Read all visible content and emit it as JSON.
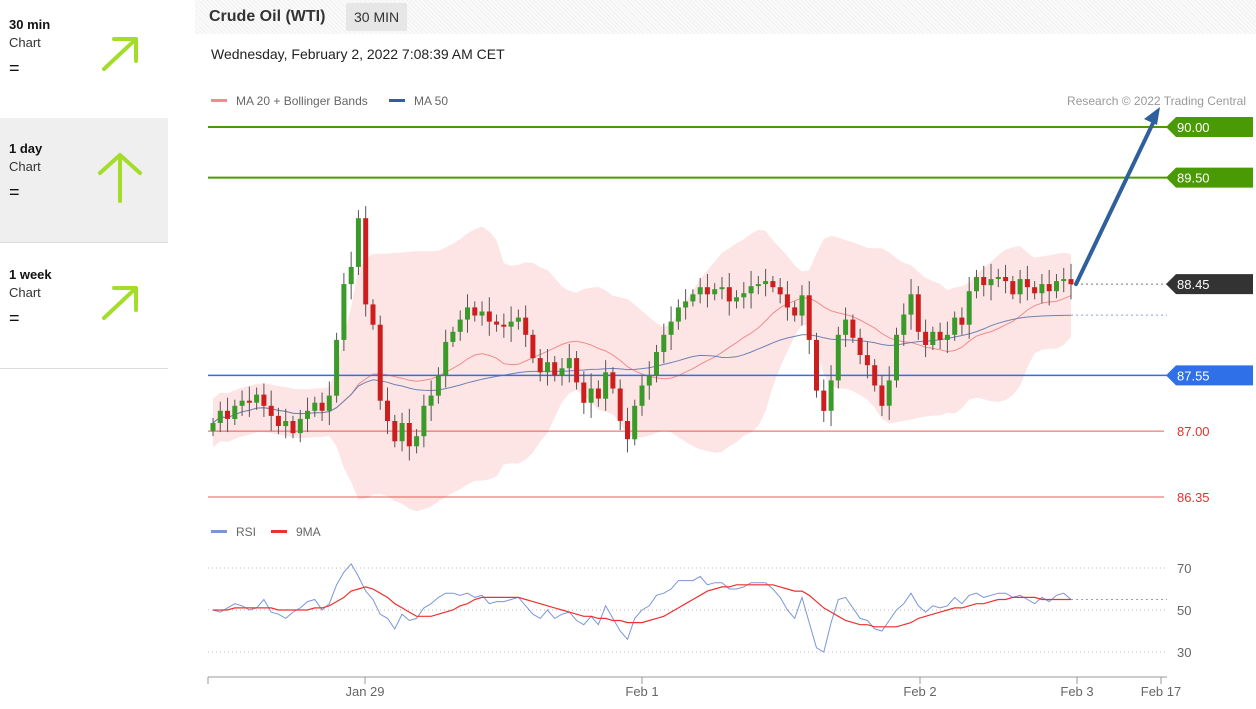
{
  "sidebar": {
    "items": [
      {
        "label": "30 min",
        "sub": "Chart",
        "status": "=",
        "arrow": "up-right-arrow-icon"
      },
      {
        "label": "1 day",
        "sub": "Chart",
        "status": "=",
        "arrow": "up-arrow-icon"
      },
      {
        "label": "1 week",
        "sub": "Chart",
        "status": "=",
        "arrow": "up-right-arrow-icon"
      }
    ],
    "arrow_color": "#a3dd2a"
  },
  "header": {
    "title": "Crude Oil (WTI)",
    "timeframe": "30 MIN",
    "datetime": "Wednesday, February 2, 2022 7:08:39 AM CET"
  },
  "legend": {
    "ma20": "MA 20 + Bollinger Bands",
    "ma50": "MA 50",
    "rsi": "RSI",
    "rsi9": "9MA",
    "credit": "Research © 2022 Trading Central"
  },
  "chart_data": [
    {
      "type": "candlestick",
      "title": "Crude Oil (WTI)",
      "timeframe": "30 MIN",
      "ylim": [
        86.35,
        90.0
      ],
      "x_ticks": [
        "Jan 29",
        "Feb 1",
        "Feb 2",
        "Feb 3",
        "Feb 17"
      ],
      "last_price": 88.45,
      "levels": [
        {
          "value": 90.0,
          "label": "90.00",
          "kind": "target",
          "color": "#4a9a05"
        },
        {
          "value": 89.5,
          "label": "89.50",
          "kind": "target",
          "color": "#4a9a05"
        },
        {
          "value": 88.45,
          "label": "88.45",
          "kind": "last",
          "color": "#333333"
        },
        {
          "value": 87.55,
          "label": "87.55",
          "kind": "pivot",
          "color": "#2f6fe8"
        },
        {
          "value": 87.0,
          "label": "87.00",
          "kind": "support",
          "color": "#e83030"
        },
        {
          "value": 86.35,
          "label": "86.35",
          "kind": "support",
          "color": "#e83030"
        }
      ],
      "forecast_arrow": {
        "from": 88.45,
        "to": 90.0,
        "color": "#2f5f9c"
      },
      "colors": {
        "up": "#3a9a2a",
        "down": "#cc1e1e",
        "band": "#fde1e1",
        "ma20": "#f08c8c",
        "ma50": "#6e80b4"
      },
      "close": [
        87.08,
        87.2,
        87.12,
        87.25,
        87.3,
        87.28,
        87.36,
        87.25,
        87.15,
        87.05,
        87.1,
        86.98,
        87.12,
        87.2,
        87.28,
        87.2,
        87.35,
        87.9,
        88.45,
        88.62,
        89.1,
        88.25,
        88.05,
        87.3,
        87.1,
        86.9,
        87.08,
        86.85,
        86.95,
        87.25,
        87.35,
        87.55,
        87.88,
        87.98,
        88.1,
        88.22,
        88.14,
        88.18,
        88.08,
        88.05,
        88.03,
        88.08,
        88.12,
        87.95,
        87.72,
        87.58,
        87.68,
        87.55,
        87.62,
        87.72,
        87.48,
        87.28,
        87.42,
        87.32,
        87.58,
        87.42,
        87.1,
        86.92,
        87.25,
        87.45,
        87.55,
        87.78,
        87.95,
        88.08,
        88.22,
        88.28,
        88.35,
        88.42,
        88.35,
        88.4,
        88.42,
        88.28,
        88.32,
        88.36,
        88.43,
        88.45,
        88.48,
        88.42,
        88.35,
        88.22,
        88.14,
        88.34,
        87.9,
        87.4,
        87.2,
        87.5,
        87.95,
        88.1,
        87.92,
        87.75,
        87.65,
        87.45,
        87.25,
        87.5,
        87.95,
        88.15,
        88.35,
        87.98,
        87.85,
        87.98,
        87.9,
        87.95,
        88.12,
        88.05,
        88.38,
        88.52,
        88.44,
        88.5,
        88.52,
        88.48,
        88.35,
        88.5,
        88.42,
        88.36,
        88.45,
        88.38,
        88.48,
        88.5,
        88.45
      ],
      "rsi": {
        "ylim": [
          25,
          75
        ],
        "gridlines": [
          70,
          50,
          30
        ],
        "series": [
          {
            "name": "RSI",
            "color": "#7a95d8",
            "values": [
              50,
              49,
              51,
              53,
              52,
              50,
              51,
              55,
              49,
              48,
              46,
              49,
              51,
              54,
              55,
              50,
              53,
              62,
              68,
              72,
              66,
              59,
              55,
              48,
              46,
              41,
              48,
              45,
              46,
              51,
              53,
              56,
              58,
              58,
              57,
              58,
              56,
              57,
              53,
              54,
              54,
              55,
              56,
              52,
              48,
              46,
              50,
              46,
              48,
              49,
              45,
              43,
              47,
              43,
              52,
              46,
              40,
              36,
              46,
              50,
              52,
              57,
              58,
              60,
              64,
              64,
              64,
              66,
              62,
              63,
              63,
              60,
              60,
              61,
              63,
              63,
              63,
              60,
              56,
              50,
              46,
              56,
              44,
              32,
              30,
              44,
              55,
              56,
              51,
              46,
              45,
              41,
              40,
              45,
              50,
              53,
              58,
              52,
              49,
              52,
              51,
              52,
              56,
              53,
              57,
              58,
              56,
              57,
              58,
              58,
              56,
              57,
              55,
              53,
              56,
              54,
              57,
              58,
              55
            ]
          },
          {
            "name": "9MA",
            "color": "#ee3030",
            "values": [
              50,
              50,
              50,
              51,
              51,
              51,
              51,
              51,
              51,
              50,
              50,
              50,
              50,
              50,
              51,
              51,
              52,
              54,
              56,
              59,
              60,
              61,
              60,
              58,
              56,
              53,
              51,
              49,
              47,
              47,
              47,
              48,
              49,
              50,
              52,
              53,
              55,
              56,
              56,
              56,
              56,
              56,
              56,
              55,
              54,
              53,
              52,
              51,
              50,
              49,
              48,
              47,
              47,
              46,
              46,
              45,
              45,
              44,
              44,
              44,
              45,
              46,
              47,
              49,
              51,
              53,
              55,
              57,
              59,
              60,
              61,
              61,
              62,
              62,
              62,
              62,
              62,
              62,
              61,
              60,
              59,
              59,
              57,
              54,
              51,
              49,
              47,
              45,
              44,
              43,
              43,
              42,
              42,
              42,
              42,
              43,
              44,
              46,
              47,
              48,
              49,
              50,
              51,
              51,
              52,
              53,
              53,
              54,
              55,
              55,
              56,
              56,
              56,
              56,
              55,
              55,
              55,
              55,
              55
            ]
          }
        ]
      }
    }
  ]
}
